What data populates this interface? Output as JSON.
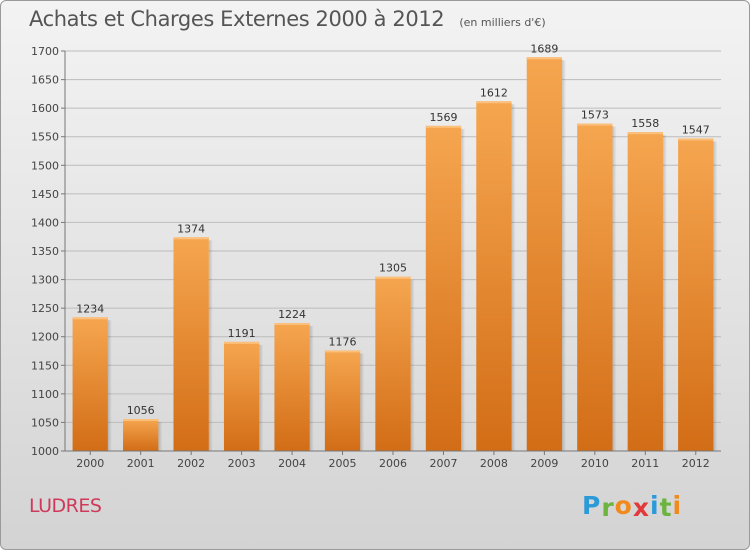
{
  "header": {
    "title": "Achats et Charges Externes 2000 à 2012",
    "subtitle": "(en milliers d'€)"
  },
  "footer": {
    "commune": "LUDRES",
    "logo": {
      "letters": [
        "P",
        "r",
        "o",
        "x",
        "i",
        "t",
        "i"
      ],
      "colors": [
        "#2b9ad9",
        "#6cb43f",
        "#f08a1c",
        "#e23a3a",
        "#2b9ad9",
        "#6cb43f",
        "#f08a1c"
      ]
    }
  },
  "chart_data": {
    "type": "bar",
    "categories": [
      "2000",
      "2001",
      "2002",
      "2003",
      "2004",
      "2005",
      "2006",
      "2007",
      "2008",
      "2009",
      "2010",
      "2011",
      "2012"
    ],
    "values": [
      1234,
      1056,
      1374,
      1191,
      1224,
      1176,
      1305,
      1569,
      1612,
      1689,
      1573,
      1558,
      1547
    ],
    "ylim": [
      1000,
      1700
    ],
    "yticks": [
      1000,
      1050,
      1100,
      1150,
      1200,
      1250,
      1300,
      1350,
      1400,
      1450,
      1500,
      1550,
      1600,
      1650,
      1700
    ],
    "grid": true,
    "bar_color": "#f19a3e",
    "bar_color_dark": "#d6721a"
  }
}
